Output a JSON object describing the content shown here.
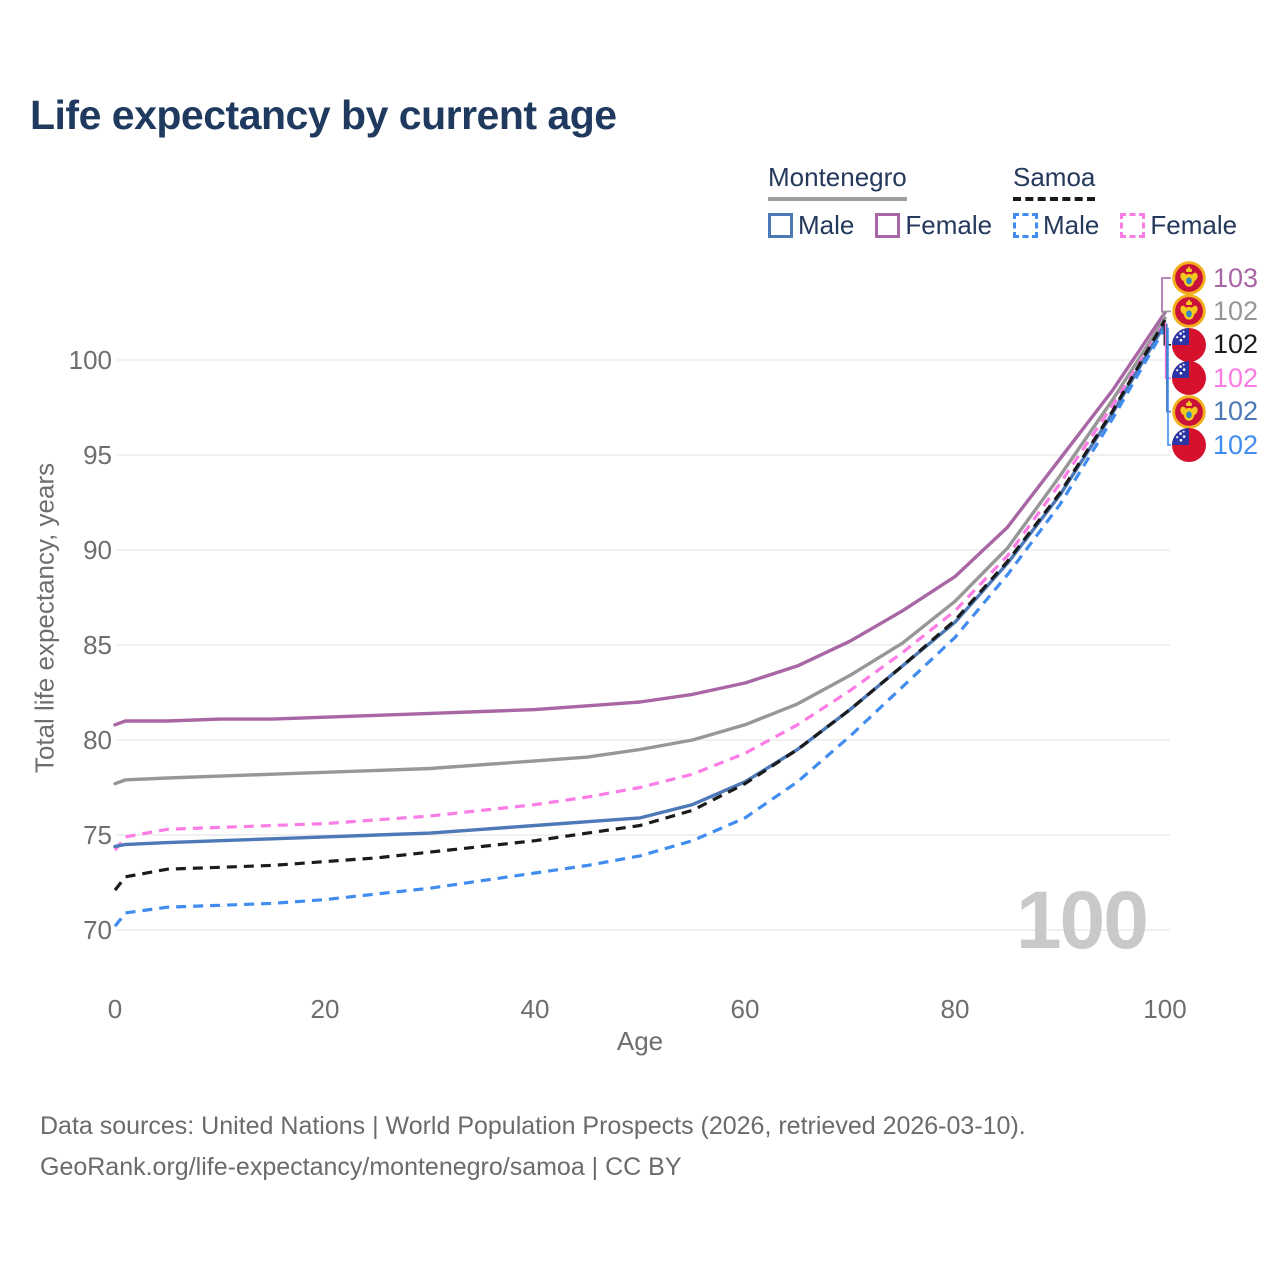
{
  "title": "Life expectancy by current age",
  "legend": {
    "groups": [
      {
        "label": "Montenegro",
        "line_style": "solid",
        "line_color": "#9e9e9e",
        "items": [
          {
            "label": "Male",
            "color": "#4d79b7",
            "dashed": false
          },
          {
            "label": "Female",
            "color": "#a866a5",
            "dashed": false
          }
        ]
      },
      {
        "label": "Samoa",
        "line_style": "dashed",
        "line_color": "#1a1a1a",
        "items": [
          {
            "label": "Male",
            "color": "#418cf0",
            "dashed": true
          },
          {
            "label": "Female",
            "color": "#fb7ce4",
            "dashed": true
          }
        ]
      }
    ]
  },
  "chart_data": {
    "type": "line",
    "title": "Life expectancy by current age",
    "xlabel": "Age",
    "ylabel": "Total life expectancy, years",
    "xlim": [
      0,
      100
    ],
    "ylim": [
      70,
      103
    ],
    "x_ticks": [
      0,
      20,
      40,
      60,
      80,
      100
    ],
    "y_ticks": [
      70,
      75,
      80,
      85,
      90,
      95,
      100
    ],
    "grid": true,
    "legend_position": "top-right",
    "x": [
      0,
      1,
      5,
      10,
      15,
      20,
      25,
      30,
      35,
      40,
      45,
      50,
      55,
      60,
      65,
      70,
      75,
      80,
      85,
      90,
      95,
      100
    ],
    "series": [
      {
        "id": "montenegro-female",
        "name": "Montenegro Female",
        "color": "#a866a5",
        "dashed": false,
        "width": 3.4,
        "values": [
          80.8,
          81.0,
          81.0,
          81.1,
          81.1,
          81.2,
          81.3,
          81.4,
          81.5,
          81.6,
          81.8,
          82.0,
          82.4,
          83.0,
          83.9,
          85.2,
          86.8,
          88.6,
          91.2,
          94.8,
          98.4,
          102.5
        ]
      },
      {
        "id": "montenegro",
        "name": "Montenegro",
        "color": "#979797",
        "dashed": false,
        "width": 3.4,
        "values": [
          77.7,
          77.9,
          78.0,
          78.1,
          78.2,
          78.3,
          78.4,
          78.5,
          78.7,
          78.9,
          79.1,
          79.5,
          80.0,
          80.8,
          81.9,
          83.4,
          85.1,
          87.3,
          90.1,
          93.9,
          97.9,
          102.2
        ]
      },
      {
        "id": "samoa-female",
        "name": "Samoa Female",
        "color": "#fb7ce4",
        "dashed": true,
        "width": 3.2,
        "values": [
          74.2,
          74.9,
          75.3,
          75.4,
          75.5,
          75.6,
          75.8,
          76.0,
          76.3,
          76.6,
          77.0,
          77.5,
          78.2,
          79.3,
          80.8,
          82.6,
          84.6,
          86.8,
          89.7,
          93.5,
          97.6,
          102.0
        ]
      },
      {
        "id": "montenegro-male",
        "name": "Montenegro Male",
        "color": "#4d79b7",
        "dashed": false,
        "width": 3.4,
        "values": [
          74.4,
          74.5,
          74.6,
          74.7,
          74.8,
          74.9,
          75.0,
          75.1,
          75.3,
          75.5,
          75.7,
          75.9,
          76.6,
          77.8,
          79.5,
          81.6,
          83.9,
          86.2,
          89.3,
          92.9,
          97.2,
          101.9
        ]
      },
      {
        "id": "samoa",
        "name": "Samoa",
        "color": "#1b1b1b",
        "dashed": true,
        "width": 3.2,
        "values": [
          72.1,
          72.8,
          73.2,
          73.3,
          73.4,
          73.6,
          73.8,
          74.1,
          74.4,
          74.7,
          75.1,
          75.5,
          76.3,
          77.7,
          79.5,
          81.6,
          83.9,
          86.3,
          89.4,
          93.0,
          97.3,
          102.1
        ]
      },
      {
        "id": "samoa-male",
        "name": "Samoa Male",
        "color": "#418cf0",
        "dashed": true,
        "width": 3.2,
        "values": [
          70.2,
          70.9,
          71.2,
          71.3,
          71.4,
          71.6,
          71.9,
          72.2,
          72.6,
          73.0,
          73.4,
          73.9,
          74.7,
          75.9,
          77.8,
          80.2,
          82.8,
          85.4,
          88.7,
          92.4,
          96.9,
          101.7
        ]
      }
    ]
  },
  "end_labels": [
    {
      "series": "Montenegro Female",
      "value": "103",
      "flag": "montenegro",
      "color": "#a866a5"
    },
    {
      "series": "Montenegro",
      "value": "102",
      "flag": "montenegro",
      "color": "#979797"
    },
    {
      "series": "Samoa",
      "value": "102",
      "flag": "samoa",
      "color": "#1b1b1b"
    },
    {
      "series": "Samoa Female",
      "value": "102",
      "flag": "samoa",
      "color": "#fb7ce4"
    },
    {
      "series": "Montenegro Male",
      "value": "102",
      "flag": "montenegro",
      "color": "#4d79b7"
    },
    {
      "series": "Samoa Male",
      "value": "102",
      "flag": "samoa",
      "color": "#418cf0"
    }
  ],
  "watermark": "100",
  "footer": {
    "line1": "Data sources: United Nations | World Population Prospects (2026, retrieved 2026-03-10).",
    "line2": "GeoRank.org/life-expectancy/montenegro/samoa | CC BY"
  }
}
